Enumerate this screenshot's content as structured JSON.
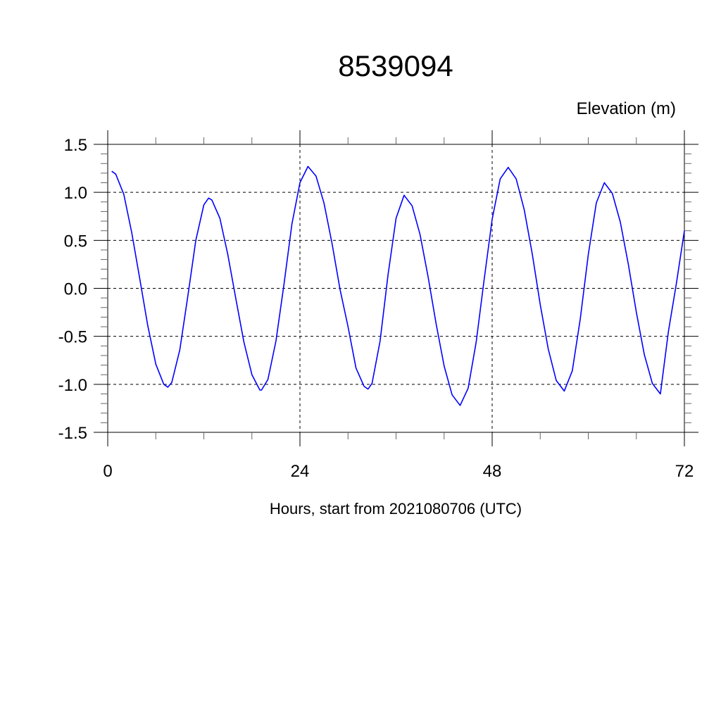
{
  "chart_data": {
    "type": "line",
    "title": "8539094",
    "ylabel": "Elevation (m)",
    "xlabel": "Hours, start from 2021080706 (UTC)",
    "xlim": [
      0,
      72
    ],
    "ylim": [
      -1.5,
      1.5
    ],
    "x_ticks": [
      0,
      24,
      48,
      72
    ],
    "x_tick_labels": [
      "0",
      "24",
      "48",
      "72"
    ],
    "x_minor_step": 6,
    "y_ticks": [
      1.5,
      1.0,
      0.5,
      0.0,
      -0.5,
      -1.0,
      -1.5
    ],
    "y_tick_labels": [
      "1.5",
      "1.0",
      "0.5",
      "0.0",
      "-0.5",
      "-1.0",
      "-1.5"
    ],
    "y_minor_step": 0.1,
    "grid": "dashed, at major ticks",
    "line_color": "#0000ff",
    "series": [
      {
        "x": [
          0.5,
          1,
          2,
          3,
          4,
          5,
          6,
          7,
          7.5,
          8,
          9,
          10,
          11,
          12,
          12.6,
          13,
          14,
          15,
          16,
          17,
          18,
          19,
          19.2,
          20,
          21,
          22,
          23,
          24,
          25,
          26,
          27,
          28,
          29,
          30,
          31,
          32,
          32.5,
          33,
          34,
          35,
          36,
          37,
          38,
          39,
          40,
          41,
          42,
          43,
          44,
          45,
          46,
          47,
          48,
          49,
          50,
          51,
          52,
          53,
          54,
          55,
          56,
          57,
          58,
          59,
          60,
          61,
          62,
          63,
          64,
          65,
          66,
          67,
          68,
          69,
          70,
          71,
          72
        ],
        "y": [
          1.22,
          1.19,
          0.98,
          0.58,
          0.1,
          -0.39,
          -0.79,
          -1.0,
          -1.03,
          -0.98,
          -0.64,
          -0.08,
          0.5,
          0.87,
          0.94,
          0.92,
          0.73,
          0.35,
          -0.11,
          -0.56,
          -0.9,
          -1.06,
          -1.06,
          -0.95,
          -0.55,
          0.04,
          0.67,
          1.1,
          1.27,
          1.17,
          0.89,
          0.47,
          -0.01,
          -0.4,
          -0.83,
          -1.02,
          -1.05,
          -0.99,
          -0.55,
          0.14,
          0.73,
          0.97,
          0.86,
          0.56,
          0.12,
          -0.37,
          -0.81,
          -1.11,
          -1.22,
          -1.04,
          -0.56,
          0.09,
          0.72,
          1.14,
          1.26,
          1.14,
          0.82,
          0.36,
          -0.17,
          -0.63,
          -0.96,
          -1.07,
          -0.86,
          -0.32,
          0.35,
          0.89,
          1.1,
          0.99,
          0.69,
          0.25,
          -0.25,
          -0.69,
          -0.99,
          -1.1,
          -0.45,
          0.05,
          0.6
        ]
      }
    ]
  }
}
